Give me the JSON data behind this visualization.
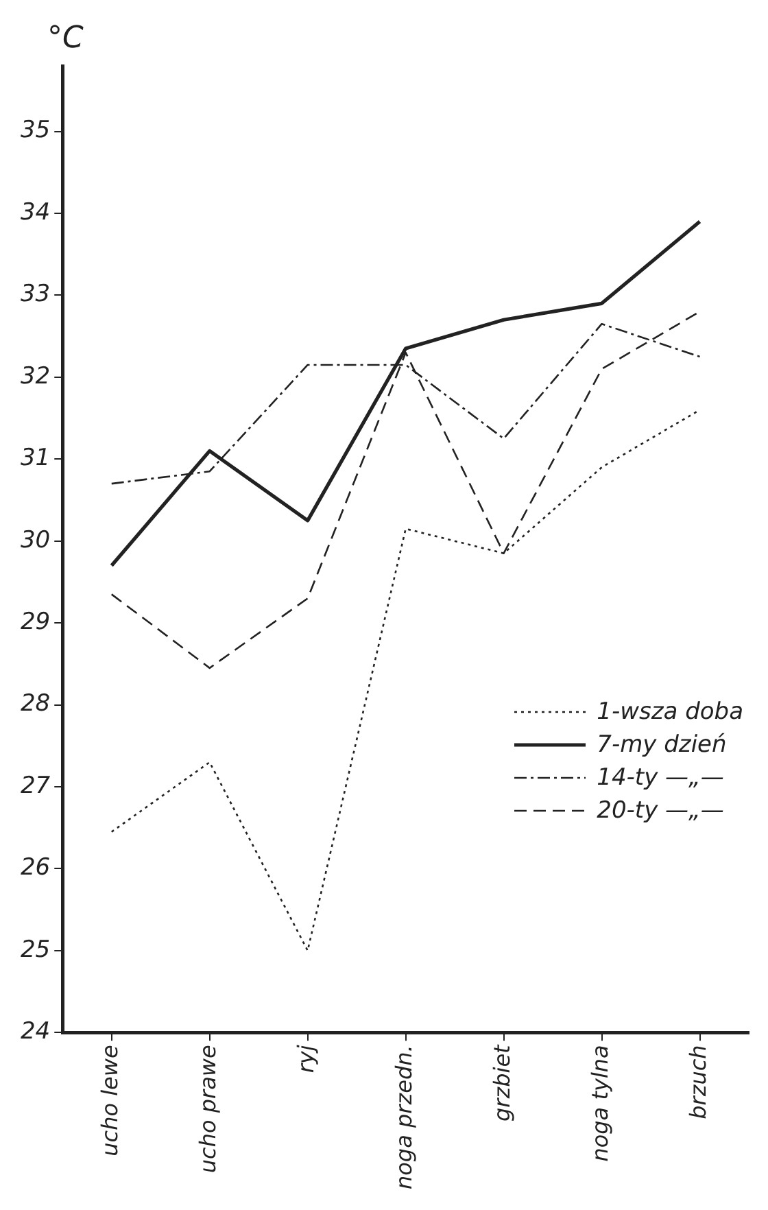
{
  "chart_data": {
    "type": "line",
    "ylabel": "°C",
    "categories": [
      "ucho lewe",
      "ucho prawe",
      "ryj",
      "noga przedn.",
      "grzbiet",
      "noga tylna",
      "brzuch"
    ],
    "ylim": [
      24,
      35.8
    ],
    "yticks": [
      24,
      25,
      26,
      27,
      28,
      29,
      30,
      31,
      32,
      33,
      34,
      35
    ],
    "grid": false,
    "legend": "bottom right",
    "marker": "none",
    "series": [
      {
        "name": "1-wsza doba",
        "color": "#222222",
        "line_style": "dotted",
        "values": [
          26.45,
          27.3,
          25.0,
          30.15,
          29.85,
          30.9,
          31.6
        ]
      },
      {
        "name": "7-my dzień",
        "color": "#222222",
        "line_style": "solid",
        "values": [
          29.7,
          31.1,
          30.25,
          32.35,
          32.7,
          32.9,
          33.9
        ]
      },
      {
        "name": "14-ty —„—",
        "color": "#222222",
        "line_style": "dashdot",
        "values": [
          30.7,
          30.85,
          32.15,
          32.15,
          31.25,
          32.65,
          32.25
        ]
      },
      {
        "name": "20-ty —„—",
        "color": "#222222",
        "line_style": "dashed",
        "values": [
          29.35,
          28.45,
          29.3,
          32.3,
          29.85,
          32.1,
          32.8
        ]
      }
    ]
  }
}
